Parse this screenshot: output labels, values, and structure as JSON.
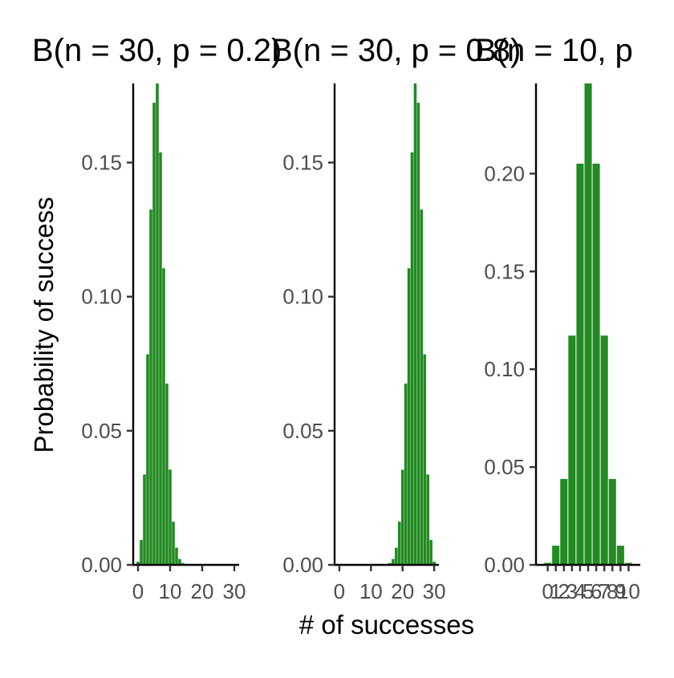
{
  "chart_data": {
    "type": "bar",
    "xlabel": "# of successes",
    "ylabel": "Probability of success",
    "bar_color": "#228B22",
    "background": "#FFFFFF",
    "grid": false,
    "panels": [
      {
        "title": "B(n = 30, p = 0.2)",
        "x": [
          0,
          1,
          2,
          3,
          4,
          5,
          6,
          7,
          8,
          9,
          10,
          11,
          12,
          13,
          14,
          15,
          16,
          17,
          18,
          19,
          20,
          21,
          22,
          23,
          24,
          25,
          26,
          27,
          28,
          29,
          30
        ],
        "values": [
          0.0012,
          0.0093,
          0.0337,
          0.0785,
          0.1325,
          0.1723,
          0.1795,
          0.1538,
          0.1106,
          0.0676,
          0.0355,
          0.0161,
          0.0064,
          0.0022,
          0.0007,
          0.0002,
          0,
          0,
          0,
          0,
          0,
          0,
          0,
          0,
          0,
          0,
          0,
          0,
          0,
          0,
          0
        ],
        "xticks": [
          0,
          10,
          20,
          30
        ],
        "yticks": [
          0.0,
          0.05,
          0.1,
          0.15
        ],
        "tick_labels_y": [
          "0.00",
          "0.05",
          "0.10",
          "0.15"
        ],
        "xlim": [
          -1.5,
          31.5
        ],
        "ylim": [
          0,
          0.1795
        ]
      },
      {
        "title": "B(n = 30, p = 0.8)",
        "x": [
          0,
          1,
          2,
          3,
          4,
          5,
          6,
          7,
          8,
          9,
          10,
          11,
          12,
          13,
          14,
          15,
          16,
          17,
          18,
          19,
          20,
          21,
          22,
          23,
          24,
          25,
          26,
          27,
          28,
          29,
          30
        ],
        "values": [
          0,
          0,
          0,
          0,
          0,
          0,
          0,
          0,
          0,
          0,
          0,
          0,
          0,
          0,
          0,
          0.0002,
          0.0007,
          0.0022,
          0.0064,
          0.0161,
          0.0355,
          0.0676,
          0.1106,
          0.1538,
          0.1795,
          0.1723,
          0.1325,
          0.0785,
          0.0337,
          0.0093,
          0.0012
        ],
        "xticks": [
          0,
          10,
          20,
          30
        ],
        "yticks": [
          0.0,
          0.05,
          0.1,
          0.15
        ],
        "tick_labels_y": [
          "0.00",
          "0.05",
          "0.10",
          "0.15"
        ],
        "xlim": [
          -1.5,
          31.5
        ],
        "ylim": [
          0,
          0.1795
        ]
      },
      {
        "title": "B(n = 10, p",
        "x": [
          0,
          1,
          2,
          3,
          4,
          5,
          6,
          7,
          8,
          9,
          10
        ],
        "values": [
          0.001,
          0.0098,
          0.0439,
          0.1172,
          0.2051,
          0.2461,
          0.2051,
          0.1172,
          0.0439,
          0.0098,
          0.001
        ],
        "xticks": [
          0,
          1,
          2,
          3,
          4,
          5,
          6,
          7,
          8,
          9,
          10
        ],
        "yticks": [
          0.0,
          0.05,
          0.1,
          0.15,
          0.2
        ],
        "tick_labels_y": [
          "0.00",
          "0.05",
          "0.10",
          "0.15",
          "0.20"
        ],
        "xlim": [
          -1.45,
          11.45
        ],
        "ylim": [
          0,
          0.2461
        ]
      }
    ]
  }
}
